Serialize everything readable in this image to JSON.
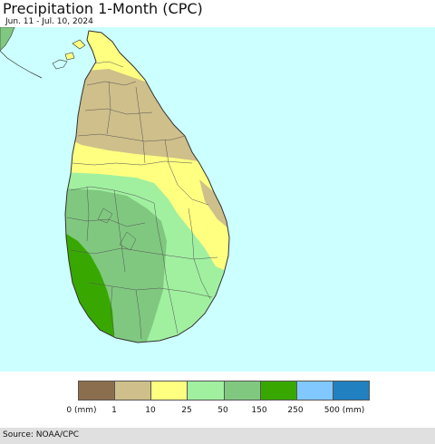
{
  "header": {
    "title": "Precipitation 1-Month (CPC)",
    "subtitle": "Jun. 11 - Jul. 10, 2024"
  },
  "legend": {
    "labels": [
      "0 (mm)",
      "1",
      "10",
      "25",
      "50",
      "150",
      "250",
      "500 (mm)"
    ],
    "colors": [
      "#8b6e4e",
      "#cfbf8a",
      "#ffff80",
      "#a0f0a0",
      "#80c880",
      "#38a800",
      "#80c8ff",
      "#2080c0"
    ]
  },
  "footer": {
    "source": "Source: NOAA/CPC"
  },
  "map": {
    "background_color": "#ccffff",
    "boundary_color": "#333333"
  }
}
